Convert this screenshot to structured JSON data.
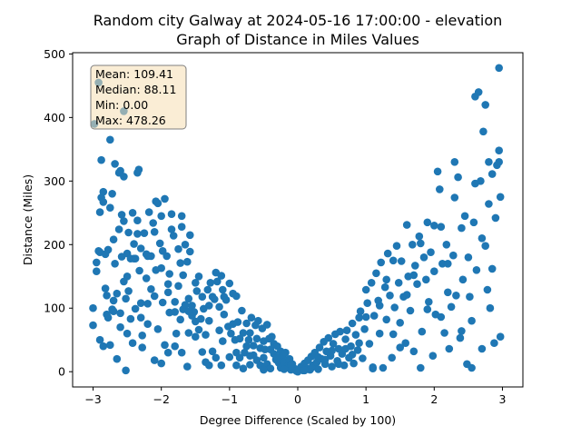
{
  "chart_data": {
    "type": "scatter",
    "title_line1": "Random city Galway at 2024-05-16 17:00:00  - elevation",
    "title_line2": "Graph of Distance in Miles Values",
    "xlabel": "Degree Difference (Scaled by 100)",
    "ylabel": "Distance (Miles)",
    "xlim": [
      -3.3,
      3.3
    ],
    "ylim": [
      -24,
      502
    ],
    "x_ticks": [
      -3,
      -2,
      -1,
      0,
      1,
      2,
      3
    ],
    "y_ticks": [
      0,
      100,
      200,
      300,
      400,
      500
    ],
    "grid": false,
    "marker_color": "#1f77b4",
    "stats": {
      "mean": "Mean: 109.41",
      "median": "Median: 88.11",
      "min": "Min: 0.00",
      "max": "Max: 478.26"
    },
    "stats_box": {
      "face": "#f5deb3",
      "edge": "#808080"
    },
    "points": [
      [
        -3.0,
        100
      ],
      [
        -3.0,
        73
      ],
      [
        -2.95,
        172
      ],
      [
        -2.95,
        158
      ],
      [
        -2.92,
        190
      ],
      [
        -2.9,
        50
      ],
      [
        -2.9,
        251
      ],
      [
        -2.88,
        333
      ],
      [
        -2.88,
        274
      ],
      [
        -2.85,
        267
      ],
      [
        -2.85,
        40
      ],
      [
        -2.85,
        283
      ],
      [
        -2.82,
        185
      ],
      [
        -2.82,
        131
      ],
      [
        -2.8,
        120
      ],
      [
        -2.8,
        90
      ],
      [
        -2.78,
        85
      ],
      [
        -2.78,
        192
      ],
      [
        -2.75,
        258
      ],
      [
        -2.75,
        42
      ],
      [
        -2.72,
        280
      ],
      [
        -2.72,
        98
      ],
      [
        -2.7,
        112
      ],
      [
        -2.7,
        208
      ],
      [
        -2.68,
        327
      ],
      [
        -2.68,
        170
      ],
      [
        -2.65,
        123
      ],
      [
        -2.65,
        20
      ],
      [
        -2.62,
        313
      ],
      [
        -2.62,
        224
      ],
      [
        -2.6,
        92
      ],
      [
        -2.6,
        70
      ],
      [
        -2.58,
        247
      ],
      [
        -2.58,
        181
      ],
      [
        -2.55,
        307
      ],
      [
        -2.55,
        237
      ],
      [
        -2.55,
        142
      ],
      [
        -2.52,
        115
      ],
      [
        -2.52,
        2
      ],
      [
        -2.5,
        60
      ],
      [
        -2.5,
        186
      ],
      [
        -2.48,
        219
      ],
      [
        -2.48,
        127
      ],
      [
        -2.45,
        178
      ],
      [
        -2.45,
        83
      ],
      [
        -2.42,
        250
      ],
      [
        -2.42,
        45
      ],
      [
        -2.4,
        201
      ],
      [
        -2.38,
        99
      ],
      [
        -2.38,
        178
      ],
      [
        -2.35,
        313
      ],
      [
        -2.35,
        238
      ],
      [
        -2.35,
        217
      ],
      [
        -2.33,
        318
      ],
      [
        -2.32,
        159
      ],
      [
        -2.3,
        194
      ],
      [
        -2.3,
        108
      ],
      [
        -2.28,
        57
      ],
      [
        -2.28,
        38
      ],
      [
        -2.25,
        218
      ],
      [
        -2.22,
        147
      ],
      [
        -2.22,
        185
      ],
      [
        -2.2,
        75
      ],
      [
        -2.2,
        107
      ],
      [
        -2.18,
        251
      ],
      [
        -2.15,
        182
      ],
      [
        -2.15,
        130
      ],
      [
        -2.12,
        234
      ],
      [
        -2.1,
        119
      ],
      [
        -2.1,
        220
      ],
      [
        -2.08,
        160
      ],
      [
        -2.08,
        268
      ],
      [
        -2.05,
        265
      ],
      [
        -2.05,
        67
      ],
      [
        -2.02,
        202
      ],
      [
        -2.0,
        245
      ],
      [
        -2.0,
        163
      ],
      [
        -1.98,
        190
      ],
      [
        -1.98,
        109
      ],
      [
        -1.95,
        272
      ],
      [
        -1.95,
        42
      ],
      [
        -1.92,
        182
      ],
      [
        -1.9,
        125
      ],
      [
        -1.9,
        30
      ],
      [
        -1.88,
        93
      ],
      [
        -1.88,
        154
      ],
      [
        -1.85,
        248
      ],
      [
        -1.85,
        224
      ],
      [
        -1.82,
        214
      ],
      [
        -1.8,
        110
      ],
      [
        -1.8,
        94
      ],
      [
        -1.78,
        60
      ],
      [
        -1.75,
        193
      ],
      [
        -1.75,
        135
      ],
      [
        -1.72,
        171
      ],
      [
        -1.72,
        82
      ],
      [
        -1.7,
        245
      ],
      [
        -1.7,
        228
      ],
      [
        -1.68,
        152
      ],
      [
        -1.68,
        98
      ],
      [
        -1.65,
        200
      ],
      [
        -1.65,
        105
      ],
      [
        -1.62,
        173
      ],
      [
        -1.62,
        8
      ],
      [
        -1.6,
        115
      ],
      [
        -1.6,
        61
      ],
      [
        -1.58,
        189
      ],
      [
        -1.58,
        215
      ],
      [
        -1.55,
        104
      ],
      [
        -1.55,
        88
      ],
      [
        -1.52,
        94
      ],
      [
        -1.5,
        79
      ],
      [
        -1.5,
        140
      ],
      [
        -1.48,
        127
      ],
      [
        -1.45,
        150
      ],
      [
        -1.45,
        66
      ],
      [
        -1.42,
        83
      ],
      [
        -1.4,
        118
      ],
      [
        -1.4,
        31
      ],
      [
        -1.38,
        99
      ],
      [
        -1.35,
        15
      ],
      [
        -1.35,
        58
      ],
      [
        -1.32,
        129
      ],
      [
        -1.3,
        10
      ],
      [
        -1.3,
        104
      ],
      [
        -1.28,
        140
      ],
      [
        -1.25,
        118
      ],
      [
        -1.25,
        32
      ],
      [
        -1.22,
        114
      ],
      [
        -1.2,
        156
      ],
      [
        -1.2,
        22
      ],
      [
        -1.18,
        142
      ],
      [
        -1.15,
        102
      ],
      [
        -1.15,
        65
      ],
      [
        -1.12,
        151
      ],
      [
        -1.12,
        10
      ],
      [
        -1.1,
        129
      ],
      [
        -1.08,
        118
      ],
      [
        -1.08,
        90
      ],
      [
        -1.05,
        113
      ],
      [
        -1.02,
        71
      ],
      [
        -1.0,
        139
      ],
      [
        -1.0,
        23
      ],
      [
        -0.98,
        60
      ],
      [
        -0.95,
        75
      ],
      [
        -0.95,
        123
      ],
      [
        -0.92,
        50
      ],
      [
        -0.9,
        119
      ],
      [
        -0.9,
        10
      ],
      [
        -0.88,
        78
      ],
      [
        -0.85,
        52
      ],
      [
        -0.85,
        22
      ],
      [
        -0.82,
        96
      ],
      [
        -0.8,
        61
      ],
      [
        -0.8,
        5
      ],
      [
        -0.78,
        30
      ],
      [
        -0.75,
        76
      ],
      [
        -0.75,
        40
      ],
      [
        -0.72,
        50
      ],
      [
        -0.7,
        61
      ],
      [
        -0.7,
        11
      ],
      [
        -0.68,
        85
      ],
      [
        -0.65,
        41
      ],
      [
        -0.65,
        26
      ],
      [
        -0.62,
        73
      ],
      [
        -0.6,
        52
      ],
      [
        -0.6,
        18
      ],
      [
        -0.58,
        80
      ],
      [
        -0.55,
        37
      ],
      [
        -0.55,
        10
      ],
      [
        -0.52,
        68
      ],
      [
        -0.5,
        48
      ],
      [
        -0.5,
        22
      ],
      [
        -0.48,
        35
      ],
      [
        -0.45,
        74
      ],
      [
        -0.45,
        12
      ],
      [
        -0.42,
        52
      ],
      [
        -0.4,
        35
      ],
      [
        -0.4,
        5
      ],
      [
        -0.38,
        55
      ],
      [
        -0.35,
        28
      ],
      [
        -0.35,
        44
      ],
      [
        -0.32,
        19
      ],
      [
        -0.3,
        40
      ],
      [
        -0.28,
        14
      ],
      [
        -0.25,
        32
      ],
      [
        -0.25,
        6
      ],
      [
        -0.22,
        24
      ],
      [
        -0.2,
        15
      ],
      [
        -0.18,
        30
      ],
      [
        -0.15,
        9
      ],
      [
        -0.12,
        20
      ],
      [
        -0.1,
        3
      ],
      [
        -0.08,
        12
      ],
      [
        -0.05,
        5
      ],
      [
        -0.02,
        1
      ],
      [
        0.0,
        0
      ],
      [
        0.02,
        4
      ],
      [
        0.05,
        8
      ],
      [
        0.08,
        2
      ],
      [
        0.1,
        13
      ],
      [
        0.12,
        6
      ],
      [
        0.15,
        18
      ],
      [
        0.18,
        3
      ],
      [
        0.2,
        24
      ],
      [
        0.22,
        10
      ],
      [
        0.25,
        30
      ],
      [
        0.28,
        15
      ],
      [
        0.3,
        4
      ],
      [
        0.32,
        38
      ],
      [
        0.35,
        20
      ],
      [
        0.38,
        47
      ],
      [
        0.4,
        12
      ],
      [
        0.42,
        32
      ],
      [
        0.45,
        53
      ],
      [
        0.48,
        25
      ],
      [
        0.5,
        8
      ],
      [
        0.52,
        44
      ],
      [
        0.55,
        59
      ],
      [
        0.58,
        17
      ],
      [
        0.6,
        36
      ],
      [
        0.62,
        63
      ],
      [
        0.65,
        28
      ],
      [
        0.68,
        10
      ],
      [
        0.7,
        51
      ],
      [
        0.72,
        65
      ],
      [
        0.75,
        22
      ],
      [
        0.78,
        40
      ],
      [
        0.8,
        76
      ],
      [
        0.82,
        13
      ],
      [
        0.85,
        58
      ],
      [
        0.88,
        34
      ],
      [
        0.9,
        85
      ],
      [
        0.92,
        95
      ],
      [
        0.95,
        21
      ],
      [
        0.98,
        67
      ],
      [
        1.0,
        129
      ],
      [
        1.02,
        108
      ],
      [
        1.05,
        44
      ],
      [
        1.08,
        140
      ],
      [
        1.1,
        5
      ],
      [
        1.12,
        88
      ],
      [
        1.15,
        155
      ],
      [
        1.18,
        112
      ],
      [
        1.2,
        60
      ],
      [
        1.22,
        172
      ],
      [
        1.25,
        6
      ],
      [
        1.28,
        133
      ],
      [
        1.3,
        82
      ],
      [
        1.32,
        186
      ],
      [
        1.35,
        120
      ],
      [
        1.38,
        22
      ],
      [
        1.4,
        175
      ],
      [
        1.42,
        101
      ],
      [
        1.45,
        198
      ],
      [
        1.48,
        140
      ],
      [
        1.5,
        77
      ],
      [
        1.52,
        174
      ],
      [
        1.55,
        118
      ],
      [
        1.58,
        45
      ],
      [
        1.6,
        231
      ],
      [
        1.62,
        150
      ],
      [
        1.65,
        96
      ],
      [
        1.68,
        200
      ],
      [
        1.7,
        32
      ],
      [
        1.72,
        167
      ],
      [
        1.75,
        138
      ],
      [
        1.78,
        213
      ],
      [
        1.8,
        6
      ],
      [
        1.82,
        63
      ],
      [
        1.85,
        180
      ],
      [
        1.88,
        145
      ],
      [
        1.9,
        235
      ],
      [
        1.92,
        110
      ],
      [
        1.95,
        188
      ],
      [
        1.98,
        25
      ],
      [
        2.0,
        158
      ],
      [
        2.02,
        90
      ],
      [
        2.05,
        315
      ],
      [
        2.08,
        287
      ],
      [
        2.1,
        228
      ],
      [
        2.12,
        170
      ],
      [
        2.15,
        61
      ],
      [
        2.18,
        200
      ],
      [
        2.2,
        125
      ],
      [
        2.22,
        36
      ],
      [
        2.25,
        102
      ],
      [
        2.28,
        183
      ],
      [
        2.3,
        274
      ],
      [
        2.32,
        120
      ],
      [
        2.35,
        306
      ],
      [
        2.38,
        53
      ],
      [
        2.4,
        226
      ],
      [
        2.42,
        145
      ],
      [
        2.45,
        245
      ],
      [
        2.48,
        12
      ],
      [
        2.5,
        180
      ],
      [
        2.52,
        118
      ],
      [
        2.55,
        80
      ],
      [
        2.58,
        235
      ],
      [
        2.6,
        433
      ],
      [
        2.62,
        160
      ],
      [
        2.65,
        440
      ],
      [
        2.68,
        300
      ],
      [
        2.7,
        36
      ],
      [
        2.72,
        378
      ],
      [
        2.75,
        198
      ],
      [
        2.78,
        129
      ],
      [
        2.8,
        330
      ],
      [
        2.82,
        100
      ],
      [
        2.85,
        311
      ],
      [
        2.88,
        45
      ],
      [
        2.9,
        242
      ],
      [
        2.92,
        325
      ],
      [
        2.95,
        478
      ],
      [
        2.95,
        348
      ],
      [
        2.97,
        55
      ],
      [
        2.97,
        275
      ],
      [
        2.8,
        264
      ],
      [
        2.85,
        162
      ],
      [
        2.7,
        210
      ],
      [
        2.6,
        296
      ],
      [
        2.55,
        6
      ],
      [
        2.4,
        64
      ],
      [
        2.3,
        330
      ],
      [
        2.2,
        170
      ],
      [
        2.1,
        86
      ],
      [
        2.0,
        230
      ],
      [
        1.9,
        98
      ],
      [
        1.8,
        202
      ],
      [
        1.7,
        152
      ],
      [
        1.6,
        121
      ],
      [
        1.5,
        38
      ],
      [
        1.4,
        59
      ],
      [
        1.3,
        145
      ],
      [
        1.2,
        104
      ],
      [
        1.1,
        7
      ],
      [
        1.0,
        86
      ],
      [
        0.9,
        45
      ],
      [
        0.8,
        27
      ],
      [
        0.7,
        36
      ],
      [
        0.6,
        12
      ],
      [
        0.5,
        33
      ],
      [
        0.4,
        19
      ],
      [
        0.3,
        23
      ],
      [
        0.2,
        6
      ],
      [
        0.1,
        2
      ],
      [
        -0.1,
        10
      ],
      [
        -0.2,
        4
      ],
      [
        -0.3,
        22
      ],
      [
        -0.5,
        3
      ],
      [
        -0.7,
        25
      ],
      [
        -0.9,
        30
      ],
      [
        -1.1,
        48
      ],
      [
        -1.3,
        80
      ],
      [
        -1.5,
        55
      ],
      [
        -1.7,
        30
      ],
      [
        -1.9,
        138
      ],
      [
        -2.1,
        18
      ],
      [
        -2.3,
        85
      ],
      [
        -2.5,
        150
      ],
      [
        -2.7,
        95
      ],
      [
        -2.9,
        188
      ],
      [
        -2.6,
        316
      ],
      [
        -2.4,
        178
      ],
      [
        -2.2,
        182
      ],
      [
        -2.0,
        13
      ],
      [
        -1.8,
        40
      ],
      [
        -1.6,
        95
      ],
      [
        -2.98,
        390
      ],
      [
        -2.92,
        455
      ],
      [
        -2.75,
        365
      ],
      [
        -2.55,
        410
      ],
      [
        2.75,
        420
      ],
      [
        2.95,
        330
      ]
    ]
  }
}
